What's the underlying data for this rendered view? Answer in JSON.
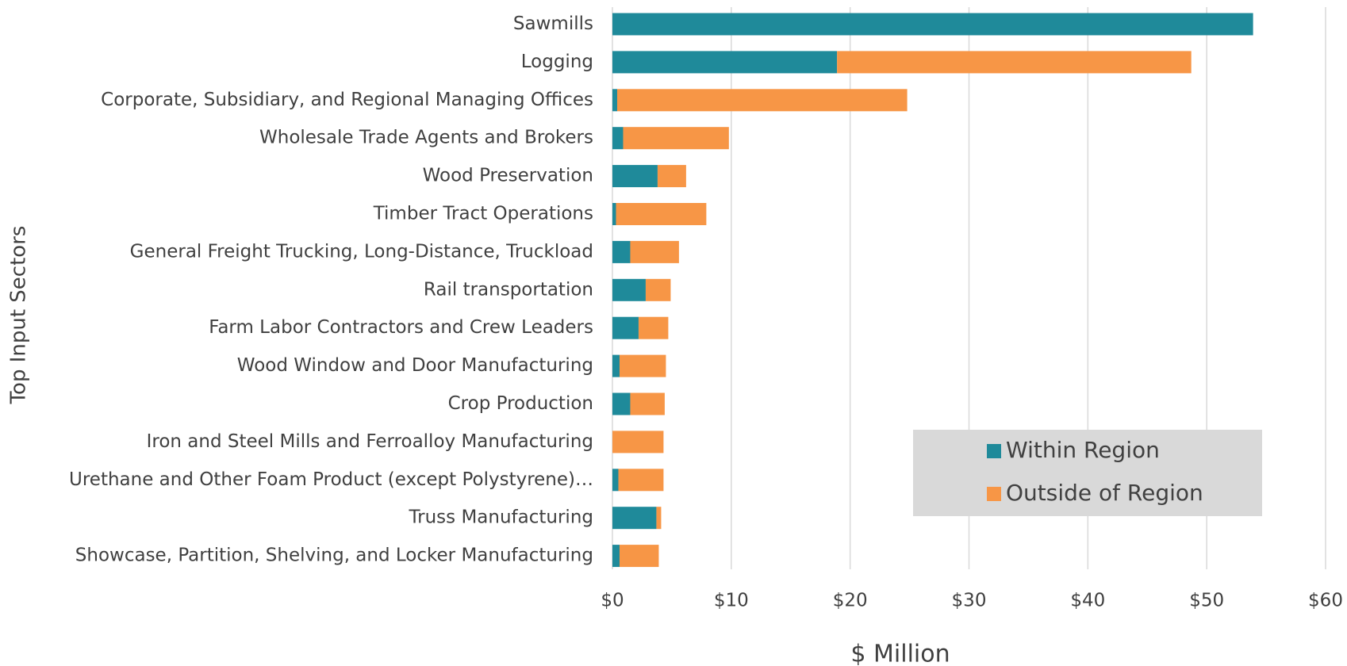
{
  "chart_data": {
    "type": "stacked_barh",
    "x_label": "$ Million",
    "y_label": "Top Input Sectors",
    "categories": [
      "Sawmills",
      "Logging",
      "Corporate, Subsidiary, and Regional Managing Offices",
      "Wholesale Trade Agents and Brokers",
      "Wood Preservation",
      "Timber Tract Operations",
      "General Freight Trucking, Long-Distance, Truckload",
      "Rail transportation",
      "Farm Labor Contractors and Crew Leaders",
      "Wood Window and Door Manufacturing",
      "Crop Production",
      "Iron and Steel Mills and Ferroalloy Manufacturing",
      "Urethane and Other Foam Product (except Polystyrene)…",
      "Truss Manufacturing",
      "Showcase, Partition, Shelving, and Locker Manufacturing"
    ],
    "series": [
      {
        "name": "Within Region",
        "color": "#1f8a9a",
        "values": [
          53.9,
          18.9,
          0.4,
          0.9,
          3.8,
          0.3,
          1.5,
          2.8,
          2.2,
          0.6,
          1.5,
          0,
          0.5,
          3.7,
          0.6
        ]
      },
      {
        "name": "Outside of Region",
        "color": "#f79646",
        "values": [
          0,
          29.8,
          24.4,
          8.9,
          2.4,
          7.6,
          4.1,
          2.1,
          2.5,
          3.9,
          2.9,
          4.3,
          3.8,
          0.4,
          3.3
        ]
      }
    ],
    "xlim": [
      0,
      60
    ],
    "xticks": [
      {
        "value": 0,
        "label": "$0"
      },
      {
        "value": 10,
        "label": "$10"
      },
      {
        "value": 20,
        "label": "$20"
      },
      {
        "value": 30,
        "label": "$30"
      },
      {
        "value": 40,
        "label": "$40"
      },
      {
        "value": 50,
        "label": "$50"
      },
      {
        "value": 60,
        "label": "$60"
      }
    ],
    "grid": true,
    "legend": "lower right"
  }
}
